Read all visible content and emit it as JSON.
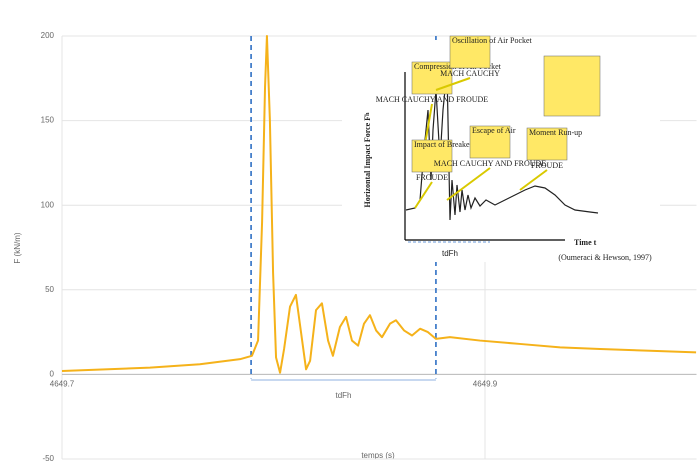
{
  "chart_data": {
    "type": "line",
    "x_label": "temps (s)",
    "y_label": "F (kN/m)",
    "xlim": [
      4649.7,
      4650.0
    ],
    "xticks": [
      4649.7,
      4649.9
    ],
    "ylim": [
      -50,
      200
    ],
    "yticks": [
      -50,
      0,
      50,
      100,
      150,
      200
    ],
    "grid": true,
    "series": [
      {
        "name": "F",
        "color": "#f5b21a",
        "x": [
          4649.7,
          4649.7416,
          4649.7652,
          4649.7842,
          4649.7898,
          4649.7927,
          4649.7946,
          4649.796,
          4649.7969,
          4649.7983,
          4649.7998,
          4649.8012,
          4649.8031,
          4649.805,
          4649.8078,
          4649.8106,
          4649.813,
          4649.8154,
          4649.8173,
          4649.8201,
          4649.8229,
          4649.8258,
          4649.8281,
          4649.8314,
          4649.8343,
          4649.8371,
          4649.84,
          4649.8428,
          4649.8456,
          4649.8485,
          4649.8513,
          4649.8551,
          4649.8579,
          4649.8617,
          4649.8655,
          4649.8693,
          4649.873,
          4649.8768,
          4649.8834,
          4649.8976,
          4649.9165,
          4649.9355,
          4649.9544,
          4649.978,
          4649.9998
        ],
        "values": [
          2,
          4,
          6,
          9,
          11,
          20,
          90,
          170,
          200,
          150,
          60,
          10,
          1,
          15,
          40,
          47,
          25,
          3,
          8,
          38,
          42,
          20,
          11,
          28,
          34,
          20,
          17,
          30,
          35,
          26,
          22,
          30,
          32,
          26,
          23,
          27,
          25,
          21,
          22,
          20,
          18,
          16,
          15,
          14,
          13
        ]
      }
    ],
    "annotation": {
      "text": "tdFh",
      "x_start": 4649.7894,
      "x_end": 4649.8768,
      "line_color": "#2e6fc4"
    },
    "inset": {
      "y_label": "Horizontal Impact Force F",
      "y_label_sub": "h",
      "x_label": "Time t",
      "span_label": "tdFh",
      "boxes": [
        "Compression of Air Pocket",
        "Oscillation of Air Pocket",
        "Impact of Breaker Tongue",
        "Escape of Air",
        "Moment Run-up"
      ],
      "notes": [
        "MACH CAUCHY AND FROUDE",
        "MACH CAUCHY",
        "FROUDE",
        "MACH CAUCHY AND FROUDE",
        "FROUDE"
      ],
      "source": "(Oumeraci & Hewson, 1997)"
    }
  }
}
